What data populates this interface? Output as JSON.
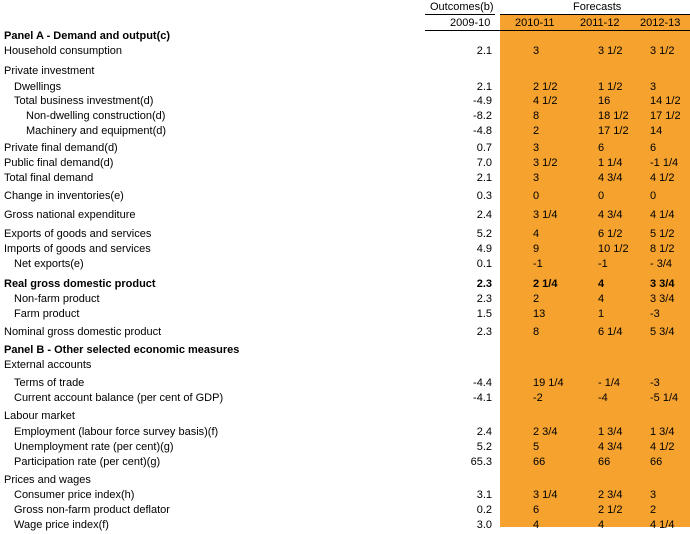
{
  "header": {
    "outcomes_label": "Outcomes(b)",
    "forecasts_label": "Forecasts",
    "years": [
      "2009-10",
      "2010-11",
      "2011-12",
      "2012-13"
    ]
  },
  "rows": [
    {
      "label": "Panel A - Demand and output(c)",
      "type": "panel",
      "values": [
        "",
        "",
        "",
        ""
      ]
    },
    {
      "label": "Household consumption",
      "values": [
        "2.1",
        "3",
        "3 1/2",
        "3 1/2"
      ]
    },
    {
      "label": "Private investment",
      "type": "section",
      "values": [
        "",
        "",
        "",
        ""
      ]
    },
    {
      "label": "Dwellings",
      "indent": 1,
      "values": [
        "2.1",
        "2 1/2",
        "1 1/2",
        "3"
      ]
    },
    {
      "label": "Total business investment(d)",
      "indent": 1,
      "values": [
        "-4.9",
        "4 1/2",
        "16",
        "14 1/2"
      ]
    },
    {
      "label": "Non-dwelling construction(d)",
      "indent": 2,
      "values": [
        "-8.2",
        "8",
        "18 1/2",
        "17 1/2"
      ]
    },
    {
      "label": "Machinery and equipment(d)",
      "indent": 2,
      "values": [
        "-4.8",
        "2",
        "17 1/2",
        "14"
      ]
    },
    {
      "label": "Private final demand(d)",
      "values": [
        "0.7",
        "3",
        "6",
        "6"
      ]
    },
    {
      "label": "Public final demand(d)",
      "values": [
        "7.0",
        "3 1/2",
        "1 1/4",
        "-1 1/4"
      ]
    },
    {
      "label": "Total final demand",
      "values": [
        "2.1",
        "3",
        "4 3/4",
        "4 1/2"
      ]
    },
    {
      "label": "Change in inventories(e)",
      "values": [
        "0.3",
        "0",
        "0",
        "0"
      ]
    },
    {
      "label": "Gross national expenditure",
      "values": [
        "2.4",
        "3 1/4",
        "4 3/4",
        "4 1/4"
      ]
    },
    {
      "label": "Exports of goods and services",
      "values": [
        "5.2",
        "4",
        "6 1/2",
        "5 1/2"
      ]
    },
    {
      "label": "Imports of goods and services",
      "values": [
        "4.9",
        "9",
        "10 1/2",
        "8 1/2"
      ]
    },
    {
      "label": "Net exports(e)",
      "indent": 1,
      "values": [
        "0.1",
        "-1",
        "-1",
        "- 3/4"
      ]
    },
    {
      "label": "Real gross domestic product",
      "type": "bold",
      "values": [
        "2.3",
        "2 1/4",
        "4",
        "3 3/4"
      ]
    },
    {
      "label": "Non-farm product",
      "indent": 1,
      "values": [
        "2.3",
        "2",
        "4",
        "3 3/4"
      ]
    },
    {
      "label": "Farm product",
      "indent": 1,
      "values": [
        "1.5",
        "13",
        "1",
        "-3"
      ]
    },
    {
      "label": "Nominal gross domestic product",
      "values": [
        "2.3",
        "8",
        "6 1/4",
        "5 3/4"
      ]
    },
    {
      "label": "Panel B - Other selected economic measures",
      "type": "panel",
      "values": [
        "",
        "",
        "",
        ""
      ]
    },
    {
      "label": "External accounts",
      "type": "section",
      "values": [
        "",
        "",
        "",
        ""
      ]
    },
    {
      "label": "Terms of trade",
      "indent": 1,
      "values": [
        "-4.4",
        "19 1/4",
        "- 1/4",
        "-3"
      ]
    },
    {
      "label": "Current account balance (per cent of GDP)",
      "indent": 1,
      "values": [
        "-4.1",
        "-2",
        "-4",
        "-5 1/4"
      ]
    },
    {
      "label": "Labour market",
      "type": "section",
      "values": [
        "",
        "",
        "",
        ""
      ]
    },
    {
      "label": "Employment (labour force survey basis)(f)",
      "indent": 1,
      "values": [
        "2.4",
        "2 3/4",
        "1 3/4",
        "1 3/4"
      ]
    },
    {
      "label": "Unemployment rate (per cent)(g)",
      "indent": 1,
      "values": [
        "5.2",
        "5",
        "4 3/4",
        "4 1/2"
      ]
    },
    {
      "label": "Participation rate (per cent)(g)",
      "indent": 1,
      "values": [
        "65.3",
        "66",
        "66",
        "66"
      ]
    },
    {
      "label": "Prices and wages",
      "type": "section",
      "values": [
        "",
        "",
        "",
        ""
      ]
    },
    {
      "label": "Consumer price index(h)",
      "indent": 1,
      "values": [
        "3.1",
        "3 1/4",
        "2 3/4",
        "3"
      ]
    },
    {
      "label": "Gross non-farm product deflator",
      "indent": 1,
      "values": [
        "0.2",
        "6",
        "2 1/2",
        "2"
      ]
    },
    {
      "label": "Wage price index(f)",
      "indent": 1,
      "values": [
        "3.0",
        "4",
        "4",
        "4 1/4"
      ]
    }
  ],
  "colors": {
    "forecast_band": "#F5A22F",
    "rule": "#000000",
    "background": "#FFFFFF"
  }
}
